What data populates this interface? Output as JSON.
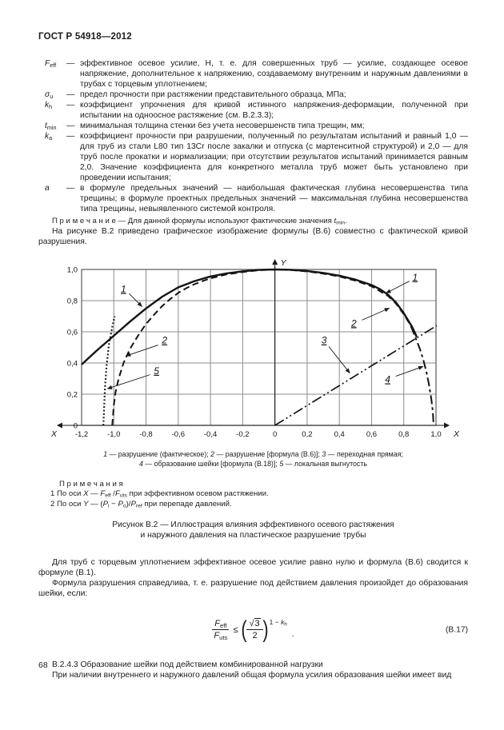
{
  "page": {
    "standard": "ГОСТ Р 54918—2012",
    "number": "68"
  },
  "definitions": [
    {
      "sym": [
        {
          "t": "F",
          "i": 1
        },
        {
          "t": "eff",
          "s": 1
        }
      ],
      "dash": "—",
      "text": "эффективное осевое усилие, Н, т. е. для совершенных труб — усилие, создающее осевое напряжение, дополнительное к напряжению, создаваемому внутренним и наружным давлениями в трубах с торцевым уплотнением;"
    },
    {
      "sym": [
        {
          "t": "σ",
          "i": 1
        },
        {
          "t": "u",
          "s": 1
        }
      ],
      "dash": "—",
      "text": "предел прочности при растяжении представительного образца, МПа;"
    },
    {
      "sym": [
        {
          "t": "k",
          "i": 1
        },
        {
          "t": "h",
          "s": 1
        }
      ],
      "dash": "—",
      "text": "коэффициент упрочнения для кривой истинного напряжения-деформации, полученной при испытании на одноосное растяжение (см. В.2.3.3);"
    },
    {
      "sym": [
        {
          "t": "t",
          "i": 1
        },
        {
          "t": "min",
          "s": 1
        }
      ],
      "dash": "—",
      "text": "минимальная толщина стенки без учета несовершенств типа трещин, мм;"
    },
    {
      "sym": [
        {
          "t": "k",
          "i": 1
        },
        {
          "t": "a",
          "s": 1
        }
      ],
      "dash": "—",
      "text": "коэффициент прочности при разрушении, полученный по результатам испытаний и равный 1,0 — для труб из стали L80 тип 13Cr после закалки и отпуска (с мартенситной структурой) и 2,0 — для труб после прокатки и нормализации; при отсутствии результатов испытаний принимается равным 2,0. Значение коэффициента для конкретного металла труб может быть установлено при проведении испытания;"
    },
    {
      "sym": [
        {
          "t": "a",
          "i": 1
        }
      ],
      "dash": "—",
      "text": "в формуле предельных значений — наибольшая фактическая глубина несовершенства типа трещины; в формуле проектных предельных значений — максимальная глубина несовершенства типа трещины, невыявленного системой контроля."
    }
  ],
  "note_formula": [
    {
      "t": "П р и м е ч а н и е — Для данной формулы используют фактические значения "
    },
    {
      "t": "t",
      "i": 1
    },
    {
      "t": "min",
      "s": 1
    },
    {
      "t": "."
    }
  ],
  "intro_figure": "На рисунке В.2 приведено графическое изображение формулы (В.6) совместно с фактической кривой разрушения.",
  "chart_data": {
    "type": "line",
    "title": "",
    "xlabel": "X",
    "ylabel": "Y",
    "xlim": [
      -1.2,
      1.0
    ],
    "ylim": [
      0,
      1.0
    ],
    "grid": true,
    "x_ticks": [
      {
        "v": -1.2,
        "label": "-1,2"
      },
      {
        "v": -1.0,
        "label": "-1,0"
      },
      {
        "v": -0.8,
        "label": "-0,8"
      },
      {
        "v": -0.6,
        "label": "-0,6"
      },
      {
        "v": -0.4,
        "label": "-0,4"
      },
      {
        "v": -0.2,
        "label": "-0,2"
      },
      {
        "v": 0,
        "label": "0"
      },
      {
        "v": 0.2,
        "label": "0,2"
      },
      {
        "v": 0.4,
        "label": "0,4"
      },
      {
        "v": 0.6,
        "label": "0,6"
      },
      {
        "v": 0.8,
        "label": "0,8"
      },
      {
        "v": 1.0,
        "label": "1,0"
      }
    ],
    "y_ticks": [
      {
        "v": 0,
        "label": "0"
      },
      {
        "v": 0.2,
        "label": "0,2"
      },
      {
        "v": 0.4,
        "label": "0,4"
      },
      {
        "v": 0.6,
        "label": "0,6"
      },
      {
        "v": 0.8,
        "label": "0,8"
      },
      {
        "v": 1.0,
        "label": "1,0"
      }
    ],
    "series": [
      {
        "name": "разрушение (фактическое)",
        "style": "solid",
        "points": [
          [
            -1.2,
            0.39
          ],
          [
            -1.1,
            0.485
          ],
          [
            -1.0,
            0.575
          ],
          [
            -0.9,
            0.665
          ],
          [
            -0.8,
            0.75
          ],
          [
            -0.7,
            0.825
          ],
          [
            -0.6,
            0.885
          ],
          [
            -0.5,
            0.925
          ],
          [
            -0.4,
            0.955
          ],
          [
            -0.3,
            0.975
          ],
          [
            -0.2,
            0.988
          ],
          [
            -0.1,
            0.997
          ],
          [
            0,
            1.0
          ],
          [
            0.1,
            0.998
          ],
          [
            0.2,
            0.99
          ],
          [
            0.3,
            0.978
          ],
          [
            0.4,
            0.96
          ],
          [
            0.5,
            0.935
          ],
          [
            0.6,
            0.9
          ],
          [
            0.65,
            0.875
          ],
          [
            0.7,
            0.84
          ],
          [
            0.75,
            0.79
          ],
          [
            0.8,
            0.72
          ],
          [
            0.85,
            0.635
          ],
          [
            0.88,
            0.57
          ]
        ]
      },
      {
        "name": "разрушение [формула (В.6)]",
        "style": "dashed",
        "points": [
          [
            -1.01,
            0
          ],
          [
            -1.0,
            0.13
          ],
          [
            -0.99,
            0.21
          ],
          [
            -0.97,
            0.3
          ],
          [
            -0.94,
            0.4
          ],
          [
            -0.9,
            0.49
          ],
          [
            -0.85,
            0.575
          ],
          [
            -0.8,
            0.65
          ],
          [
            -0.75,
            0.71
          ],
          [
            -0.7,
            0.765
          ],
          [
            -0.65,
            0.81
          ],
          [
            -0.6,
            0.85
          ],
          [
            -0.55,
            0.88
          ],
          [
            -0.5,
            0.905
          ],
          [
            -0.45,
            0.925
          ],
          [
            -0.4,
            0.943
          ],
          [
            -0.3,
            0.968
          ],
          [
            -0.2,
            0.983
          ],
          [
            -0.1,
            0.995
          ],
          [
            0,
            1.0
          ],
          [
            0.1,
            0.996
          ],
          [
            0.2,
            0.987
          ],
          [
            0.3,
            0.973
          ],
          [
            0.4,
            0.955
          ],
          [
            0.5,
            0.928
          ],
          [
            0.6,
            0.892
          ],
          [
            0.7,
            0.832
          ],
          [
            0.75,
            0.783
          ],
          [
            0.8,
            0.713
          ],
          [
            0.85,
            0.628
          ],
          [
            0.88,
            0.565
          ]
        ]
      },
      {
        "name": "переходная прямая",
        "style": "dashdotdot",
        "points": [
          [
            0,
            0
          ],
          [
            1.005,
            0.64
          ]
        ]
      },
      {
        "name": "образование шейки [формула (В.18)]",
        "style": "dashdot",
        "points": [
          [
            0.845,
            0.635
          ],
          [
            0.87,
            0.57
          ],
          [
            0.9,
            0.49
          ],
          [
            0.92,
            0.425
          ],
          [
            0.94,
            0.345
          ],
          [
            0.955,
            0.27
          ],
          [
            0.97,
            0.175
          ],
          [
            0.98,
            0.09
          ],
          [
            0.985,
            0
          ]
        ]
      },
      {
        "name": "локальная выгнутость",
        "style": "dotted",
        "points": [
          [
            -1.065,
            0
          ],
          [
            -1.06,
            0.12
          ],
          [
            -1.055,
            0.24
          ],
          [
            -1.045,
            0.38
          ],
          [
            -1.03,
            0.52
          ],
          [
            -1.01,
            0.63
          ],
          [
            -0.995,
            0.7
          ]
        ]
      }
    ],
    "callouts": [
      {
        "label": "1",
        "tx": -0.94,
        "ty": 0.875,
        "x1": -0.905,
        "y1": 0.845,
        "x2": -0.825,
        "y2": 0.762
      },
      {
        "label": "2",
        "tx": -0.685,
        "ty": 0.545,
        "x1": -0.725,
        "y1": 0.515,
        "x2": -0.925,
        "y2": 0.445
      },
      {
        "label": "5",
        "tx": -0.735,
        "ty": 0.35,
        "x1": -0.775,
        "y1": 0.325,
        "x2": -1.04,
        "y2": 0.235
      },
      {
        "label": "1",
        "tx": 0.87,
        "ty": 0.95,
        "x1": 0.835,
        "y1": 0.925,
        "x2": 0.69,
        "y2": 0.848
      },
      {
        "label": "2",
        "tx": 0.49,
        "ty": 0.655,
        "x1": 0.54,
        "y1": 0.675,
        "x2": 0.71,
        "y2": 0.752
      },
      {
        "label": "3",
        "tx": 0.305,
        "ty": 0.545,
        "x1": 0.335,
        "y1": 0.505,
        "x2": 0.465,
        "y2": 0.335
      },
      {
        "label": "4",
        "tx": 0.7,
        "ty": 0.295,
        "x1": 0.75,
        "y1": 0.315,
        "x2": 0.92,
        "y2": 0.378
      }
    ],
    "legend_position": "below"
  },
  "legend": {
    "line1": [
      {
        "t": "1",
        "i": 1
      },
      {
        "t": " — разрушение (фактическое); "
      },
      {
        "t": "2",
        "i": 1
      },
      {
        "t": " — разрушение [формула (В.6)]; "
      },
      {
        "t": "3",
        "i": 1
      },
      {
        "t": " — переходная прямая;"
      }
    ],
    "line2": [
      {
        "t": "4",
        "i": 1
      },
      {
        "t": " — образование шейки [формула (В.18)]; "
      },
      {
        "t": "5",
        "i": 1
      },
      {
        "t": " — локальная выгнутость"
      }
    ]
  },
  "notes": {
    "title": "П р и м е ч а н и я",
    "item1": [
      {
        "t": "1 По оси "
      },
      {
        "t": "X",
        "i": 1
      },
      {
        "t": " — "
      },
      {
        "t": "F",
        "i": 1
      },
      {
        "t": "eff",
        "s": 1
      },
      {
        "t": " /"
      },
      {
        "t": "F",
        "i": 1
      },
      {
        "t": "uts",
        "s": 1
      },
      {
        "t": " при эффективном осевом растяжении."
      }
    ],
    "item2": [
      {
        "t": "2 По оси "
      },
      {
        "t": "Y",
        "i": 1
      },
      {
        "t": " — ("
      },
      {
        "t": "P",
        "i": 1
      },
      {
        "t": "i",
        "s": 1
      },
      {
        "t": " − "
      },
      {
        "t": "P",
        "i": 1
      },
      {
        "t": "o",
        "s": 1
      },
      {
        "t": ")/"
      },
      {
        "t": "P",
        "i": 1
      },
      {
        "t": "ref",
        "s": 1
      },
      {
        "t": " при перепаде давлений."
      }
    ]
  },
  "figure_caption": {
    "line1": "Рисунок В.2 — Иллюстрация влияния эффективного осевого растяжения",
    "line2": "и наружного давления на пластическое разрушение трубы"
  },
  "paragraphs": {
    "p1": "Для труб с торцевым уплотнением эффективное осевое усилие равно нулю и формула (В.6) сводится к формуле (В.1).",
    "p2": "Формула разрушения справедлива, т. е. разрушение под действием давления произойдет до образования шейки, если:"
  },
  "formula": {
    "num_sym": "F",
    "num_sub": "eff",
    "den_sym": "F",
    "den_sub": "uts",
    "rel": "≤",
    "lparen": "(",
    "rparen": ")",
    "sqrt_sym": "√",
    "sqrt_arg": "3",
    "den2": "2",
    "exp_prefix": "1 − ",
    "exp_sym": "k",
    "exp_sub": "h",
    "period": ".",
    "label": "(В.17)"
  },
  "section": {
    "heading": "В.2.4.3 Образование шейки под действием комбинированной нагрузки",
    "body": "При наличии внутреннего и наружного давлений общая формула усилия образования шейки имеет вид"
  },
  "colors": {
    "text": "#1c1c1c",
    "grid": "#8c8c8c",
    "curve": "#141414",
    "paper": "#ffffff"
  }
}
